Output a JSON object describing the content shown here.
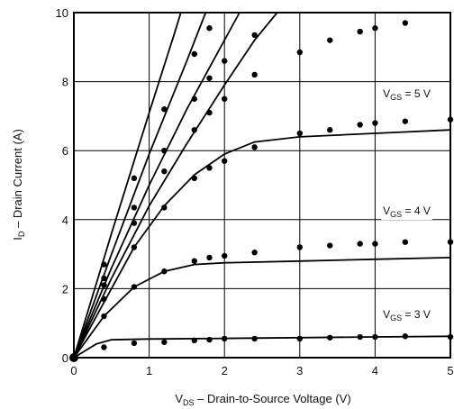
{
  "chart_data": {
    "type": "scatter",
    "xlabel": {
      "main": "V",
      "sub": "DS",
      "rest": " – Drain-to-Source Voltage (V)"
    },
    "ylabel": {
      "main": "I",
      "sub": "D",
      "rest": " – Drain Current (A)"
    },
    "xlim": [
      0,
      5
    ],
    "ylim": [
      0,
      10
    ],
    "xticks": [
      0,
      1,
      2,
      3,
      4,
      5
    ],
    "yticks": [
      0,
      2,
      4,
      6,
      8,
      10
    ],
    "grid": true,
    "curve_labels": [
      {
        "main": "V",
        "sub": "GS",
        "rest": " = 5 V",
        "x": 4.42,
        "y": 7.55
      },
      {
        "main": "V",
        "sub": "GS",
        "rest": " = 4 V",
        "x": 4.42,
        "y": 4.15
      },
      {
        "main": "V",
        "sub": "GS",
        "rest": " = 3 V",
        "x": 4.42,
        "y": 1.15
      }
    ],
    "series": [
      {
        "line": [
          [
            0,
            0
          ],
          [
            0.3,
            0.4
          ],
          [
            0.5,
            0.52
          ],
          [
            1,
            0.54
          ],
          [
            2,
            0.56
          ],
          [
            3,
            0.58
          ],
          [
            4,
            0.6
          ],
          [
            5,
            0.62
          ]
        ],
        "points": [
          [
            0.4,
            0.3
          ],
          [
            0.8,
            0.42
          ],
          [
            1.2,
            0.45
          ],
          [
            1.6,
            0.5
          ],
          [
            1.8,
            0.52
          ],
          [
            2,
            0.55
          ],
          [
            2.4,
            0.55
          ],
          [
            3,
            0.55
          ],
          [
            3.4,
            0.58
          ],
          [
            3.8,
            0.6
          ],
          [
            4,
            0.6
          ],
          [
            4.4,
            0.62
          ],
          [
            5,
            0.6
          ]
        ]
      },
      {
        "line": [
          [
            0,
            0
          ],
          [
            0.4,
            1.2
          ],
          [
            0.8,
            2.05
          ],
          [
            1.2,
            2.5
          ],
          [
            1.6,
            2.7
          ],
          [
            2,
            2.75
          ],
          [
            3,
            2.8
          ],
          [
            4,
            2.85
          ],
          [
            5,
            2.9
          ]
        ],
        "points": [
          [
            0.4,
            1.2
          ],
          [
            0.8,
            2.05
          ],
          [
            1.2,
            2.5
          ],
          [
            1.6,
            2.8
          ],
          [
            1.8,
            2.9
          ],
          [
            2,
            2.95
          ],
          [
            2.4,
            3.05
          ],
          [
            3,
            3.2
          ],
          [
            3.4,
            3.25
          ],
          [
            3.8,
            3.3
          ],
          [
            4,
            3.3
          ],
          [
            4.4,
            3.35
          ],
          [
            5,
            3.35
          ]
        ]
      },
      {
        "line": [
          [
            0,
            0
          ],
          [
            0.4,
            1.6
          ],
          [
            0.8,
            3.2
          ],
          [
            1.2,
            4.4
          ],
          [
            1.6,
            5.3
          ],
          [
            2,
            5.9
          ],
          [
            2.4,
            6.25
          ],
          [
            3,
            6.4
          ],
          [
            4,
            6.5
          ],
          [
            5,
            6.6
          ]
        ],
        "points": [
          [
            0.4,
            1.7
          ],
          [
            0.8,
            3.2
          ],
          [
            1.2,
            4.35
          ],
          [
            1.6,
            5.2
          ],
          [
            1.8,
            5.5
          ],
          [
            2,
            5.7
          ],
          [
            2.4,
            6.1
          ],
          [
            3,
            6.5
          ],
          [
            3.4,
            6.6
          ],
          [
            3.8,
            6.75
          ],
          [
            4,
            6.8
          ],
          [
            4.4,
            6.85
          ],
          [
            5,
            6.9
          ]
        ]
      },
      {
        "line": [
          [
            0,
            0
          ],
          [
            0.5,
            2.3
          ],
          [
            1,
            4.4
          ],
          [
            1.5,
            6.2
          ],
          [
            2,
            7.9
          ],
          [
            2.4,
            9.2
          ],
          [
            2.7,
            10
          ]
        ],
        "points": [
          [
            0.4,
            2.1
          ],
          [
            0.8,
            3.9
          ],
          [
            1.2,
            5.4
          ],
          [
            1.6,
            6.6
          ],
          [
            1.8,
            7.1
          ],
          [
            2,
            7.5
          ],
          [
            2.4,
            8.2
          ],
          [
            3,
            8.85
          ],
          [
            3.4,
            9.2
          ],
          [
            3.8,
            9.45
          ],
          [
            4,
            9.55
          ],
          [
            4.4,
            9.7
          ]
        ]
      },
      {
        "line": [
          [
            0,
            0
          ],
          [
            0.5,
            2.6
          ],
          [
            1,
            5.0
          ],
          [
            1.5,
            7.2
          ],
          [
            2,
            9.2
          ],
          [
            2.2,
            10
          ]
        ],
        "points": [
          [
            0.4,
            2.3
          ],
          [
            0.8,
            4.35
          ],
          [
            1.2,
            6.0
          ],
          [
            1.6,
            7.5
          ],
          [
            1.8,
            8.1
          ],
          [
            2,
            8.6
          ],
          [
            2.4,
            9.35
          ]
        ]
      },
      {
        "line": [
          [
            0,
            0
          ],
          [
            0.5,
            3.0
          ],
          [
            1,
            5.9
          ],
          [
            1.5,
            8.6
          ],
          [
            1.75,
            10
          ]
        ],
        "points": [
          [
            0.4,
            2.7
          ],
          [
            0.8,
            5.2
          ],
          [
            1.2,
            7.2
          ],
          [
            1.6,
            8.8
          ],
          [
            1.8,
            9.55
          ]
        ]
      },
      {
        "line": [
          [
            0,
            0
          ],
          [
            0.5,
            3.6
          ],
          [
            1,
            7.1
          ],
          [
            1.35,
            9.5
          ],
          [
            1.42,
            10
          ]
        ],
        "points": []
      }
    ]
  }
}
